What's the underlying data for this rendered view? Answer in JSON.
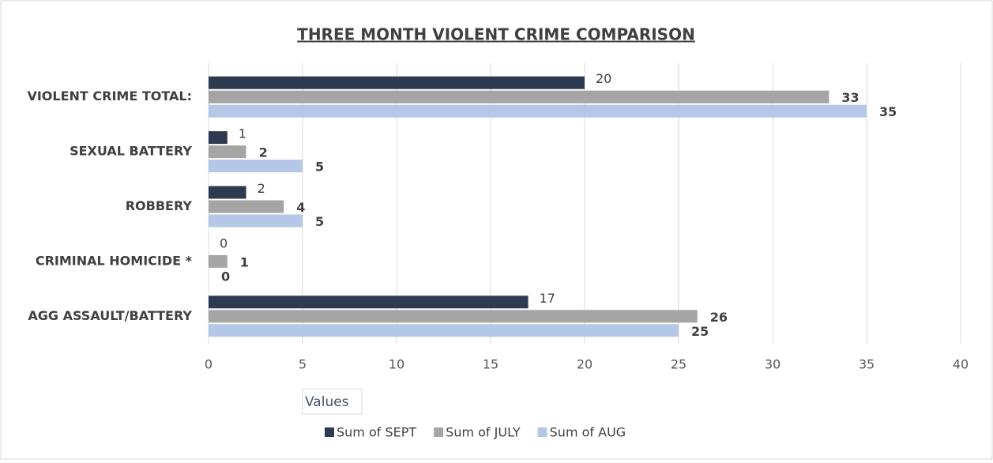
{
  "chart_data": {
    "type": "bar",
    "orientation": "horizontal",
    "title": "THREE MONTH VIOLENT CRIME COMPARISON",
    "categories": [
      "VIOLENT CRIME TOTAL:",
      "SEXUAL BATTERY",
      "ROBBERY",
      "CRIMINAL HOMICIDE *",
      "AGG ASSAULT/BATTERY"
    ],
    "series": [
      {
        "name": "Sum of SEPT",
        "color": "#2e3a50",
        "values": [
          20,
          1,
          2,
          0,
          17
        ]
      },
      {
        "name": "Sum of JULY",
        "color": "#a5a5a5",
        "values": [
          33,
          2,
          4,
          1,
          26
        ]
      },
      {
        "name": "Sum of AUG",
        "color": "#b4c7e7",
        "values": [
          35,
          5,
          5,
          0,
          25
        ]
      }
    ],
    "xlim": [
      0,
      40
    ],
    "xticks": [
      0,
      5,
      10,
      15,
      20,
      25,
      30,
      35,
      40
    ],
    "grid": true,
    "field_button": "Values",
    "legend": "bottom"
  }
}
